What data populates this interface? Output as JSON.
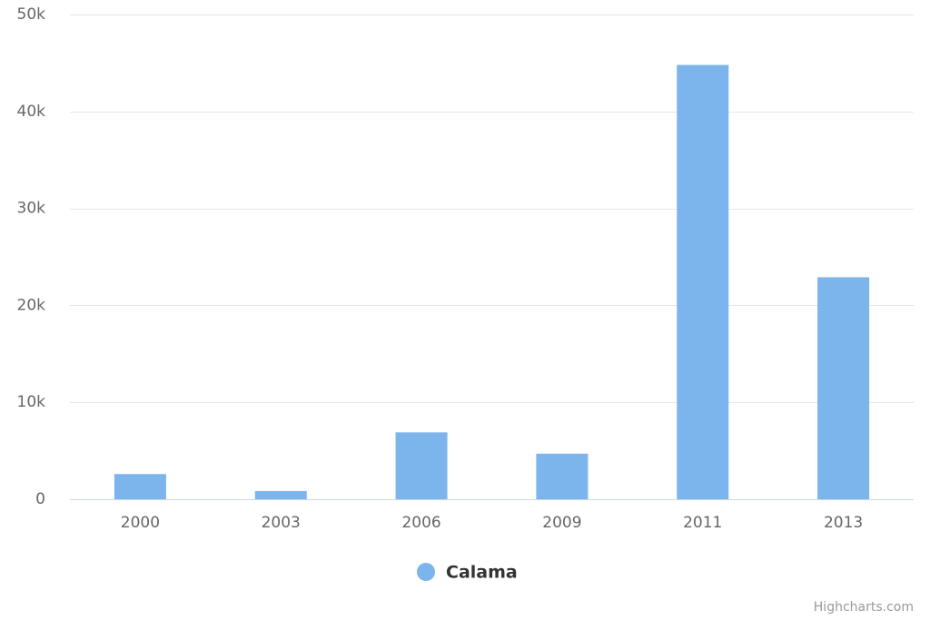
{
  "chart_data": {
    "type": "bar",
    "categories": [
      "2000",
      "2003",
      "2006",
      "2009",
      "2011",
      "2013"
    ],
    "series": [
      {
        "name": "Calama",
        "color": "#7cb5ec",
        "values": [
          2600,
          850,
          6900,
          4700,
          44800,
          22900
        ]
      }
    ],
    "ylim": [
      0,
      50000
    ],
    "yticks": [
      0,
      {
        "value": 10000,
        "label": "10k"
      },
      {
        "value": 20000,
        "label": "20k"
      },
      {
        "value": 30000,
        "label": "30k"
      },
      {
        "value": 40000,
        "label": "40k"
      },
      {
        "value": 50000,
        "label": "50k"
      }
    ],
    "grid": true,
    "legend": "bottom",
    "credits": "Highcharts.com"
  }
}
